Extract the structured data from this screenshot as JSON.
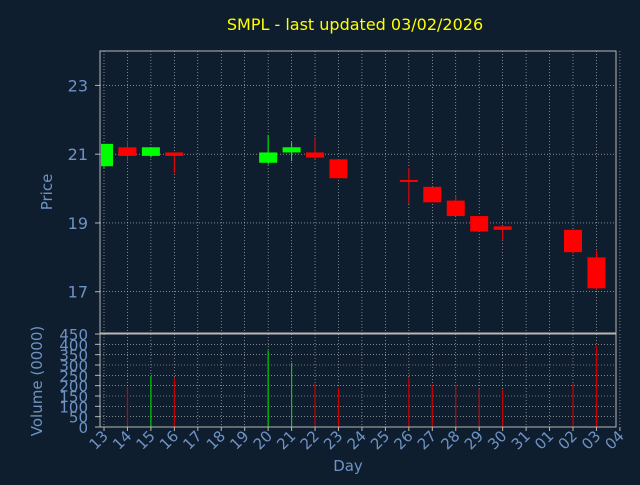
{
  "colors": {
    "background": "#0f1e2e",
    "title": "#ffff00",
    "axis_text": "#6f93c4",
    "frame": "#b7b7b7",
    "grid": "#c8c8c8",
    "up": "#00ff00",
    "down": "#ff0000",
    "volume_up": "#00cc00",
    "volume_down": "#cc0000"
  },
  "chart_data": {
    "type": "candlestick",
    "title": "SMPL - last updated 03/02/2026",
    "xlabel": "Day",
    "grid": true,
    "x_ticks": [
      "13",
      "14",
      "15",
      "16",
      "17",
      "18",
      "19",
      "20",
      "21",
      "22",
      "23",
      "24",
      "25",
      "26",
      "27",
      "28",
      "29",
      "30",
      "31",
      "01",
      "02",
      "03",
      "04"
    ],
    "price_panel": {
      "ylabel": "Price",
      "ylim": [
        15.8,
        24.0
      ],
      "y_ticks": [
        "17",
        "19",
        "21",
        "23"
      ],
      "candles": [
        {
          "x": "13",
          "open": 20.65,
          "high": 21.3,
          "low": 20.6,
          "close": 21.3
        },
        {
          "x": "14",
          "open": 21.2,
          "high": 21.4,
          "low": 20.8,
          "close": 20.95
        },
        {
          "x": "15",
          "open": 20.95,
          "high": 21.2,
          "low": 20.9,
          "close": 21.2
        },
        {
          "x": "16",
          "open": 21.05,
          "high": 21.05,
          "low": 20.45,
          "close": 20.95
        },
        {
          "x": "20",
          "open": 20.75,
          "high": 21.55,
          "low": 20.7,
          "close": 21.05
        },
        {
          "x": "21",
          "open": 21.05,
          "high": 21.35,
          "low": 20.8,
          "close": 21.2
        },
        {
          "x": "22",
          "open": 21.05,
          "high": 21.5,
          "low": 20.85,
          "close": 20.9
        },
        {
          "x": "23",
          "open": 20.85,
          "high": 20.85,
          "low": 20.3,
          "close": 20.3
        },
        {
          "x": "26",
          "open": 20.25,
          "high": 20.6,
          "low": 19.55,
          "close": 20.2
        },
        {
          "x": "27",
          "open": 20.05,
          "high": 20.05,
          "low": 19.6,
          "close": 19.6
        },
        {
          "x": "28",
          "open": 19.65,
          "high": 19.8,
          "low": 19.2,
          "close": 19.2
        },
        {
          "x": "29",
          "open": 19.2,
          "high": 19.2,
          "low": 18.75,
          "close": 18.75
        },
        {
          "x": "30",
          "open": 18.9,
          "high": 18.9,
          "low": 18.5,
          "close": 18.8
        },
        {
          "x": "02",
          "open": 18.8,
          "high": 18.8,
          "low": 18.1,
          "close": 18.15
        },
        {
          "x": "03",
          "open": 18.0,
          "high": 18.2,
          "low": 17.05,
          "close": 17.1
        }
      ]
    },
    "volume_panel": {
      "ylabel": "Volume (0000)",
      "ylim": [
        0,
        450
      ],
      "y_ticks": [
        "0",
        "50",
        "100",
        "150",
        "200",
        "250",
        "300",
        "350",
        "400",
        "450"
      ],
      "bars": [
        {
          "x": "14",
          "value": 195,
          "direction": "down"
        },
        {
          "x": "15",
          "value": 245,
          "direction": "up"
        },
        {
          "x": "16",
          "value": 240,
          "direction": "down"
        },
        {
          "x": "20",
          "value": 370,
          "direction": "up"
        },
        {
          "x": "21",
          "value": 310,
          "direction": "up"
        },
        {
          "x": "22",
          "value": 210,
          "direction": "down"
        },
        {
          "x": "23",
          "value": 190,
          "direction": "down"
        },
        {
          "x": "26",
          "value": 240,
          "direction": "down"
        },
        {
          "x": "27",
          "value": 205,
          "direction": "down"
        },
        {
          "x": "28",
          "value": 205,
          "direction": "down"
        },
        {
          "x": "29",
          "value": 185,
          "direction": "down"
        },
        {
          "x": "30",
          "value": 180,
          "direction": "down"
        },
        {
          "x": "02",
          "value": 210,
          "direction": "down"
        },
        {
          "x": "03",
          "value": 395,
          "direction": "down"
        }
      ]
    }
  }
}
